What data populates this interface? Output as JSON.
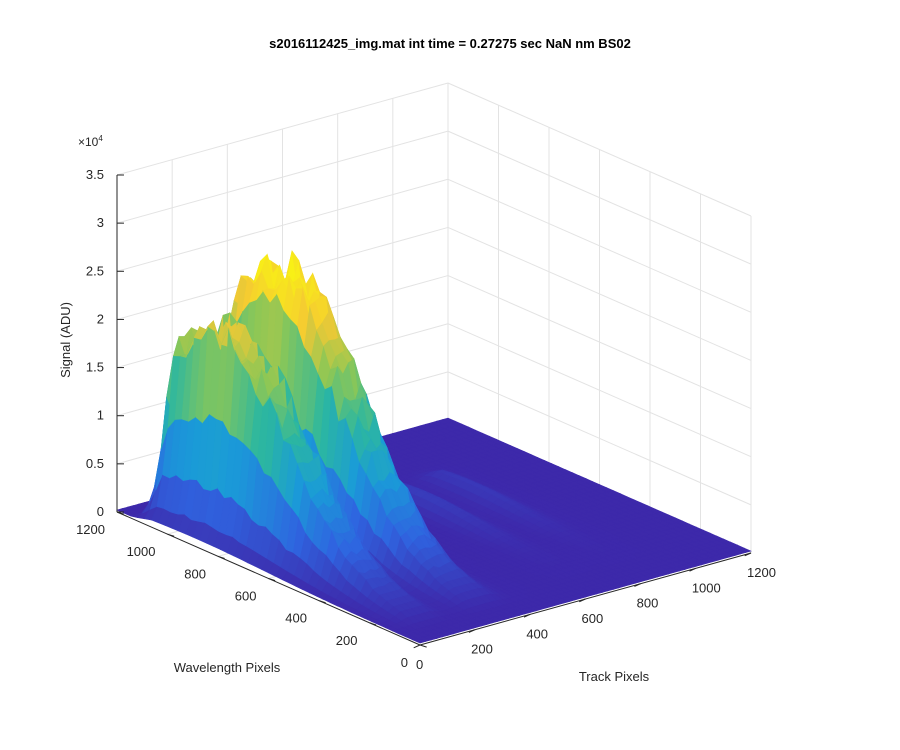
{
  "figure": {
    "title": "s2016112425_img.mat int time = 0.27275 sec  NaN nm BS02",
    "z_exponent_base": "×10",
    "z_exponent_power": "4"
  },
  "chart_data": {
    "type": "surface",
    "title": "s2016112425_img.mat int time = 0.27275 sec  NaN nm BS02",
    "xlabel": "Track Pixels",
    "ylabel": "Wavelength Pixels",
    "zlabel": "Signal (ADU)",
    "xlim": [
      0,
      1200
    ],
    "ylim": [
      0,
      1200
    ],
    "zlim": [
      0,
      35000
    ],
    "x_ticks": [
      0,
      200,
      400,
      600,
      800,
      1000,
      1200
    ],
    "y_ticks": [
      0,
      200,
      400,
      600,
      800,
      1000,
      1200
    ],
    "z_ticks": [
      0,
      5000,
      10000,
      15000,
      20000,
      25000,
      30000,
      35000
    ],
    "x_tick_labels": [
      "0",
      "200",
      "400",
      "600",
      "800",
      "1000",
      "1200"
    ],
    "y_tick_labels": [
      "0",
      "200",
      "400",
      "600",
      "800",
      "1000",
      "1200"
    ],
    "z_tick_labels": [
      "0",
      "0.5",
      "1",
      "1.5",
      "2",
      "2.5",
      "3",
      "3.5"
    ],
    "z_multiplier": "×10^4",
    "grid": true,
    "colormap": "parula",
    "colormap_colors": [
      "#3e26a8",
      "#2f64e0",
      "#1a9bd8",
      "#2cb7a0",
      "#8cc756",
      "#f5c933",
      "#f9fb0e"
    ],
    "peaks": [
      {
        "track_center": 120,
        "track_width": 55,
        "max_signal": 21000,
        "wavelength_range": [
          150,
          1100
        ]
      },
      {
        "track_center": 330,
        "track_width": 60,
        "max_signal": 25500,
        "wavelength_range": [
          150,
          1100
        ]
      },
      {
        "track_center": 700,
        "track_width": 45,
        "max_signal": 1500,
        "wavelength_range": [
          200,
          900
        ]
      },
      {
        "track_center": 870,
        "track_width": 45,
        "max_signal": 1200,
        "wavelength_range": [
          200,
          900
        ]
      }
    ],
    "baseline_signal": 200
  }
}
